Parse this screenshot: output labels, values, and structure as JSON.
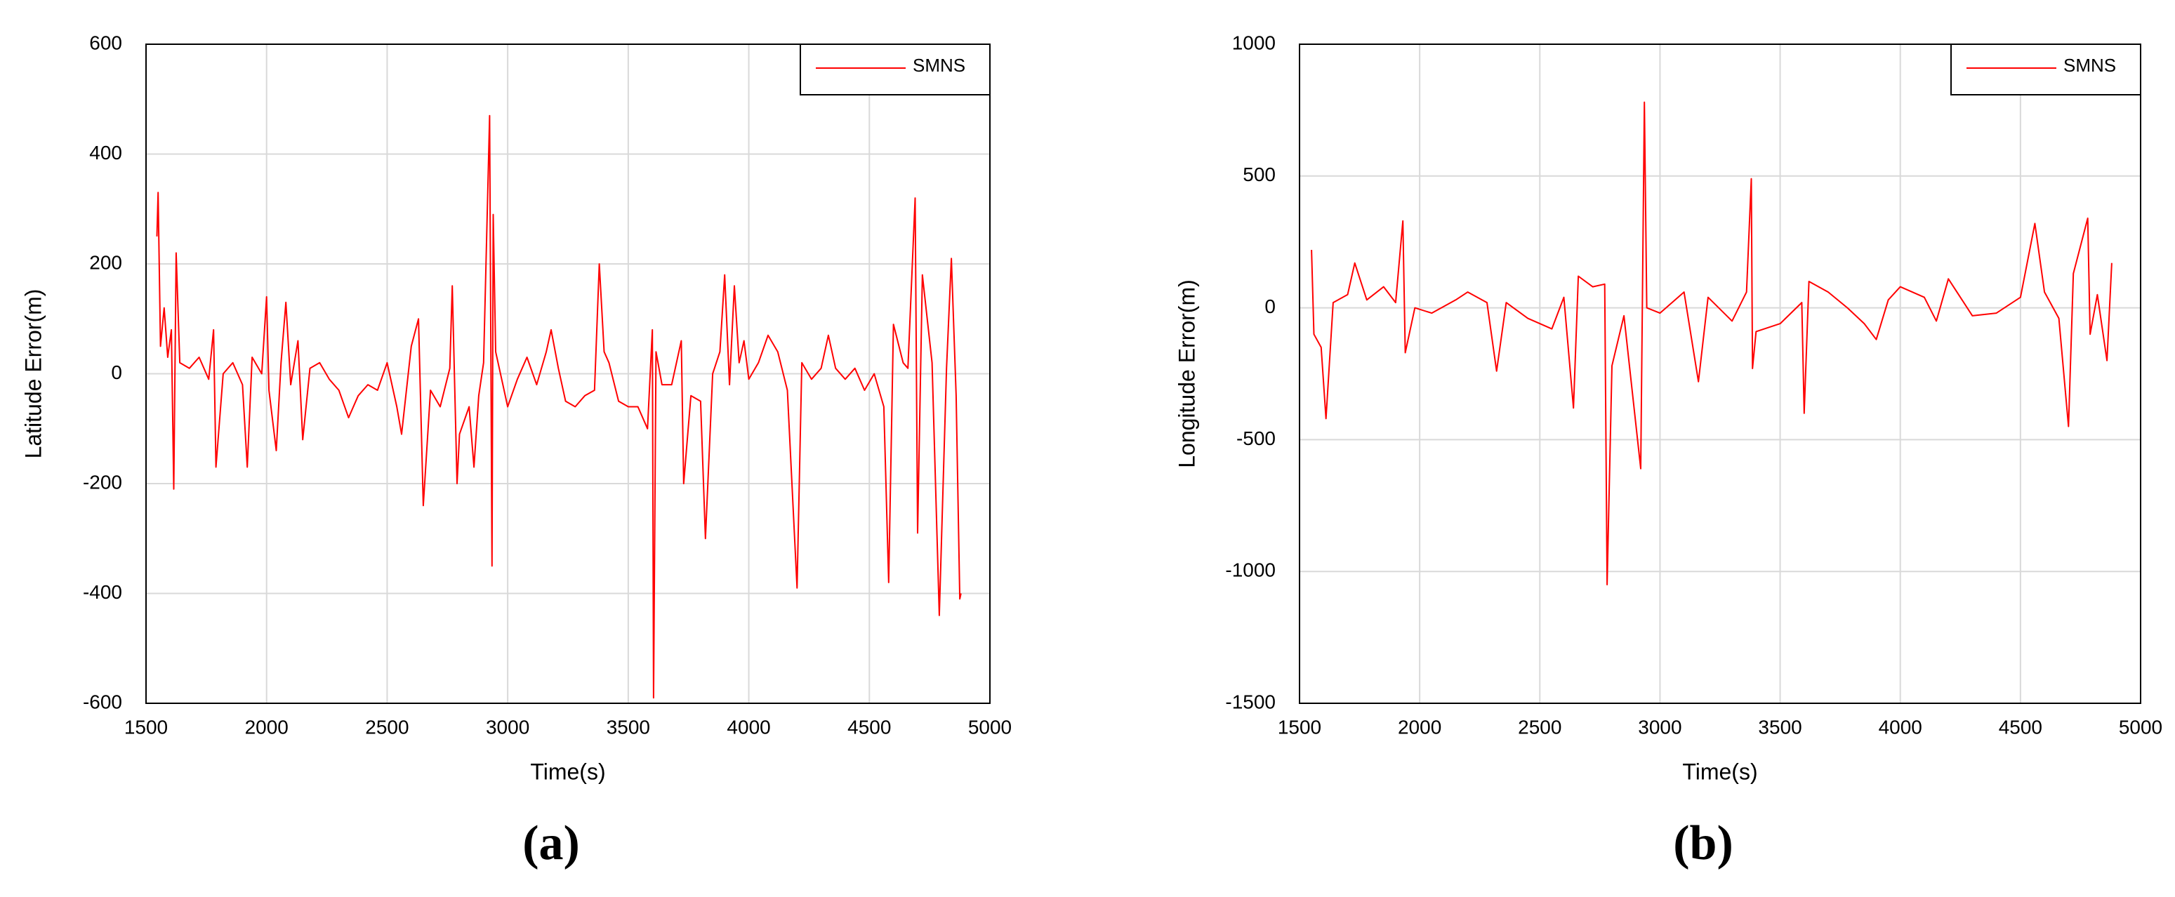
{
  "chart_data": [
    {
      "type": "line",
      "label": "(a)",
      "xlabel": "Time(s)",
      "ylabel": "Latitude Error(m)",
      "xlim": [
        1500,
        5000
      ],
      "ylim": [
        -600,
        600
      ],
      "xticks": [
        1500,
        2000,
        2500,
        3000,
        3500,
        4000,
        4500,
        5000
      ],
      "yticks": [
        -600,
        -400,
        -200,
        0,
        200,
        400,
        600
      ],
      "grid": true,
      "legend": "upper right",
      "x": [
        1545,
        1550,
        1560,
        1575,
        1590,
        1605,
        1615,
        1625,
        1640,
        1680,
        1720,
        1760,
        1780,
        1790,
        1820,
        1860,
        1900,
        1920,
        1940,
        1980,
        2000,
        2010,
        2040,
        2060,
        2080,
        2100,
        2130,
        2150,
        2180,
        2220,
        2260,
        2300,
        2340,
        2380,
        2420,
        2460,
        2500,
        2540,
        2560,
        2600,
        2630,
        2650,
        2680,
        2720,
        2760,
        2770,
        2790,
        2800,
        2840,
        2860,
        2880,
        2900,
        2925,
        2935,
        2940,
        2950,
        2980,
        3000,
        3040,
        3080,
        3120,
        3160,
        3180,
        3210,
        3240,
        3280,
        3320,
        3360,
        3380,
        3400,
        3420,
        3460,
        3500,
        3540,
        3580,
        3600,
        3605,
        3615,
        3640,
        3680,
        3720,
        3730,
        3760,
        3800,
        3820,
        3850,
        3880,
        3900,
        3920,
        3940,
        3960,
        3980,
        4000,
        4040,
        4080,
        4120,
        4160,
        4200,
        4220,
        4260,
        4300,
        4330,
        4360,
        4400,
        4440,
        4480,
        4520,
        4560,
        4580,
        4600,
        4640,
        4660,
        4690,
        4700,
        4720,
        4760,
        4790,
        4820,
        4840,
        4860,
        4875,
        4880
      ],
      "series": [
        {
          "name": "SMNS",
          "color": "#ff0000",
          "values": [
            250,
            330,
            50,
            120,
            30,
            80,
            -210,
            220,
            20,
            10,
            30,
            -10,
            80,
            -170,
            0,
            20,
            -20,
            -170,
            30,
            0,
            140,
            -30,
            -140,
            20,
            130,
            -20,
            60,
            -120,
            10,
            20,
            -10,
            -30,
            -80,
            -40,
            -20,
            -30,
            20,
            -60,
            -110,
            50,
            100,
            -240,
            -30,
            -60,
            10,
            160,
            -200,
            -110,
            -60,
            -170,
            -40,
            20,
            470,
            -350,
            290,
            40,
            -20,
            -60,
            -10,
            30,
            -20,
            40,
            80,
            10,
            -50,
            -60,
            -40,
            -30,
            200,
            40,
            20,
            -50,
            -60,
            -60,
            -100,
            80,
            -590,
            40,
            -20,
            -20,
            60,
            -200,
            -40,
            -50,
            -300,
            0,
            40,
            180,
            -20,
            160,
            20,
            60,
            -10,
            20,
            70,
            40,
            -30,
            -390,
            20,
            -10,
            10,
            70,
            10,
            -10,
            10,
            -30,
            0,
            -60,
            -380,
            90,
            20,
            10,
            320,
            -290,
            180,
            20,
            -440,
            10,
            210,
            -40,
            -410,
            -400
          ]
        }
      ]
    },
    {
      "type": "line",
      "label": "(b)",
      "xlabel": "Time(s)",
      "ylabel": "Longitude Error(m)",
      "xlim": [
        1500,
        5000
      ],
      "ylim": [
        -1500,
        1000
      ],
      "xticks": [
        1500,
        2000,
        2500,
        3000,
        3500,
        4000,
        4500,
        5000
      ],
      "yticks": [
        -1500,
        -1000,
        -500,
        0,
        500,
        1000
      ],
      "grid": true,
      "legend": "upper right",
      "x": [
        1550,
        1560,
        1590,
        1610,
        1640,
        1700,
        1730,
        1780,
        1850,
        1900,
        1930,
        1940,
        1980,
        2050,
        2150,
        2200,
        2280,
        2320,
        2360,
        2450,
        2550,
        2600,
        2640,
        2660,
        2720,
        2770,
        2780,
        2800,
        2850,
        2920,
        2935,
        2945,
        3000,
        3100,
        3160,
        3200,
        3300,
        3360,
        3380,
        3385,
        3400,
        3500,
        3590,
        3600,
        3620,
        3700,
        3780,
        3850,
        3900,
        3950,
        4000,
        4100,
        4150,
        4200,
        4300,
        4400,
        4500,
        4560,
        4600,
        4660,
        4700,
        4720,
        4780,
        4790,
        4820,
        4860,
        4880
      ],
      "series": [
        {
          "name": "SMNS",
          "color": "#ff0000",
          "values": [
            220,
            -100,
            -150,
            -420,
            20,
            50,
            170,
            30,
            80,
            20,
            330,
            -170,
            0,
            -20,
            30,
            60,
            20,
            -240,
            20,
            -40,
            -80,
            40,
            -380,
            120,
            80,
            90,
            -1050,
            -220,
            -30,
            -610,
            780,
            0,
            -20,
            60,
            -280,
            40,
            -50,
            60,
            490,
            -230,
            -90,
            -60,
            20,
            -400,
            100,
            60,
            0,
            -60,
            -120,
            30,
            80,
            40,
            -50,
            110,
            -30,
            -20,
            40,
            320,
            60,
            -40,
            -450,
            130,
            340,
            -100,
            50,
            -200,
            170
          ]
        }
      ]
    }
  ]
}
